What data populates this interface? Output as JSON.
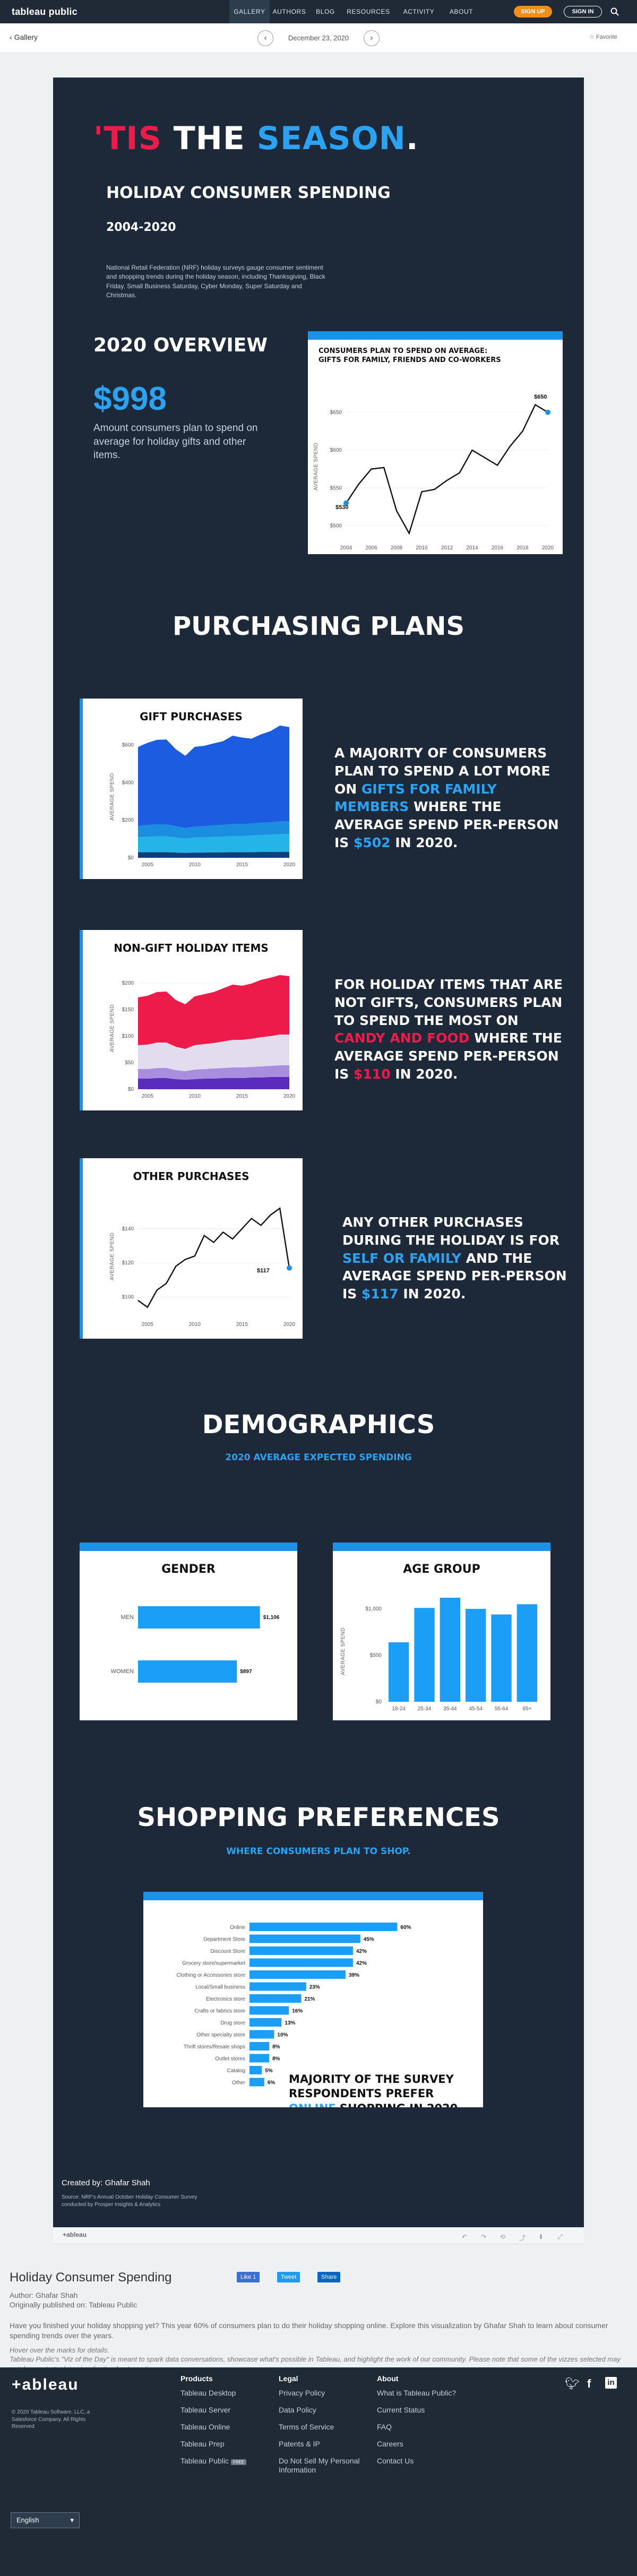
{
  "nav": {
    "logo": "tableau public",
    "items": [
      "GALLERY",
      "AUTHORS",
      "BLOG",
      "RESOURCES",
      "ACTIVITY",
      "ABOUT"
    ],
    "signup": "SIGN UP",
    "signin": "SIGN IN"
  },
  "subbar": {
    "back": "Gallery",
    "date": "December 23, 2020",
    "favorite": "Favorite"
  },
  "hero": {
    "tis": "'TIS",
    "the": " THE ",
    "season": "SEASON",
    "dot": ".",
    "subtitle": "HOLIDAY CONSUMER SPENDING",
    "years": "2004-2020",
    "intro": "National Retail Federation (NRF) holiday surveys gauge consumer sentiment and shopping trends during the holiday season, including Thanksgiving, Black Friday, Small Business Saturday, Cyber Monday, Super Saturday and Christmas."
  },
  "overview": {
    "heading": "2020 OVERVIEW",
    "amount": "$998",
    "desc": "Amount consumers plan to spend on average for holiday gifts and other items.",
    "chart_title_1": "CONSUMERS PLAN TO SPEND ON AVERAGE:",
    "chart_title_2": "GIFTS FOR FAMILY, FRIENDS AND CO-WORKERS",
    "ylabel": "AVERAGE SPEND",
    "end_label": "$650",
    "start_label": "$530"
  },
  "purchasing": {
    "heading": "PURCHASING PLANS",
    "gift": {
      "title": "GIFT PURCHASES",
      "ylabel": "AVERAGE SPEND",
      "text_a": "A MAJORITY OF CONSUMERS PLAN TO SPEND A LOT MORE ON ",
      "highlight": "GIFTS FOR FAMILY MEMBERS",
      "text_b": " WHERE THE AVERAGE SPEND PER-PERSON IS ",
      "amount": "$502",
      "text_c": " IN 2020."
    },
    "nongift": {
      "title": "NON-GIFT HOLIDAY ITEMS",
      "ylabel": "AVERAGE SPEND",
      "text_a": "FOR HOLIDAY ITEMS THAT ARE NOT GIFTS, CONSUMERS PLAN TO SPEND THE MOST ON ",
      "highlight": "CANDY AND FOOD",
      "text_b": " WHERE THE AVERAGE SPEND PER-PERSON IS ",
      "amount": "$110",
      "text_c": " IN 2020."
    },
    "other": {
      "title": "OTHER PURCHASES",
      "ylabel": "AVERAGE SPEND",
      "end_label": "$117",
      "text_a": "ANY OTHER PURCHASES DURING THE HOLIDAY IS FOR ",
      "highlight": "SELF OR FAMILY",
      "text_b": " AND THE AVERAGE SPEND PER-PERSON IS ",
      "amount": "$117",
      "text_c": " IN 2020."
    }
  },
  "demographics": {
    "heading": "DEMOGRAPHICS",
    "sub": "2020 AVERAGE EXPECTED SPENDING",
    "gender_title": "GENDER",
    "age_title": "AGE GROUP",
    "age_ylabel": "AVERAGE SPEND"
  },
  "shopping": {
    "heading": "SHOPPING PREFERENCES",
    "sub": "WHERE CONSUMERS PLAN TO SHOP.",
    "callout_a": "MAJORITY OF THE SURVEY RESPONDENTS PREFER ",
    "callout_hl": "ONLINE",
    "callout_b": " SHOPPING IN 2020."
  },
  "credits": {
    "creator": "Created by: Ghafar Shah",
    "source": "Source: NRF's Annual October Holiday Consumer Survey conducted by Prosper Insights & Analytics"
  },
  "toolbar": {
    "brand": "+ableau"
  },
  "details": {
    "title": "Holiday Consumer Spending",
    "like": "Like 1",
    "tweet": "Tweet",
    "share": "Share",
    "author": "Author: Ghafar Shah",
    "published": "Originally published on: Tableau Public",
    "description": "Have you finished your holiday shopping yet? This year 60% of consumers plan to do their holiday shopping online. Explore this visualization by Ghafar Shah to learn about consumer spending trends over the years.",
    "hover": "Hover over the marks for details.",
    "votd": "Tableau Public's \"Viz of the Day\" is meant to spark data conversations, showcase what's possible in Tableau, and highlight the work of our community. Please note that some of the vizzes selected may not demonstrate data visualization best practices."
  },
  "footer": {
    "logo": "+ableau",
    "copyright": "© 2020 Tableau Software, LLC, a Salesforce Company. All Rights Reserved",
    "products": {
      "head": "Products",
      "links": [
        "Tableau Desktop",
        "Tableau Server",
        "Tableau Online",
        "Tableau Prep",
        "Tableau Public"
      ],
      "free": "FREE"
    },
    "legal": {
      "head": "Legal",
      "links": [
        "Privacy Policy",
        "Data Policy",
        "Terms of Service",
        "Patents & IP",
        "Do Not Sell My Personal Information"
      ]
    },
    "about": {
      "head": "About",
      "links": [
        "What is Tableau Public?",
        "Current Status",
        "FAQ",
        "Careers",
        "Contact Us"
      ]
    },
    "language": "English"
  },
  "colors": {
    "navy": "#1d2838",
    "accent_blue": "#29a3f2",
    "accent_red": "#ec1b4a"
  },
  "chart_data": [
    {
      "type": "line",
      "title": "CONSUMERS PLAN TO SPEND ON AVERAGE: GIFTS FOR FAMILY, FRIENDS AND CO-WORKERS",
      "ylabel": "AVERAGE SPEND",
      "x": [
        2004,
        2005,
        2006,
        2007,
        2008,
        2009,
        2010,
        2011,
        2012,
        2013,
        2014,
        2015,
        2016,
        2017,
        2018,
        2019,
        2020
      ],
      "values": [
        530,
        555,
        575,
        577,
        520,
        490,
        545,
        548,
        560,
        570,
        600,
        590,
        580,
        605,
        625,
        660,
        650
      ],
      "ylim": [
        480,
        680
      ],
      "yticks": [
        500,
        550,
        600,
        650
      ],
      "xticks": [
        2004,
        2006,
        2008,
        2010,
        2012,
        2014,
        2016,
        2018,
        2020
      ]
    },
    {
      "type": "area",
      "title": "GIFT PURCHASES",
      "ylabel": "AVERAGE SPEND",
      "x": [
        2004,
        2005,
        2006,
        2007,
        2008,
        2009,
        2010,
        2011,
        2012,
        2013,
        2014,
        2015,
        2016,
        2017,
        2018,
        2019,
        2020
      ],
      "series": [
        {
          "values": [
            30,
            30,
            30,
            30,
            28,
            26,
            28,
            28,
            29,
            29,
            30,
            30,
            30,
            31,
            31,
            32,
            32
          ]
        },
        {
          "values": [
            80,
            82,
            84,
            84,
            80,
            76,
            80,
            80,
            82,
            84,
            86,
            86,
            88,
            90,
            92,
            94,
            94
          ]
        },
        {
          "values": [
            60,
            62,
            64,
            64,
            60,
            56,
            58,
            60,
            62,
            62,
            64,
            64,
            64,
            66,
            66,
            68,
            68
          ]
        },
        {
          "values": [
            420,
            438,
            450,
            452,
            410,
            385,
            425,
            428,
            436,
            446,
            470,
            460,
            452,
            470,
            485,
            510,
            502
          ]
        }
      ],
      "colors": [
        "#0d3f7a",
        "#24b4e8",
        "#1c8ee0",
        "#1b5ce0"
      ],
      "ylim": [
        0,
        650
      ],
      "yticks": [
        0,
        200,
        400,
        600
      ],
      "xticks": [
        2005,
        2010,
        2015,
        2020
      ]
    },
    {
      "type": "area",
      "title": "NON-GIFT HOLIDAY ITEMS",
      "ylabel": "AVERAGE SPEND",
      "x": [
        2004,
        2005,
        2006,
        2007,
        2008,
        2009,
        2010,
        2011,
        2012,
        2013,
        2014,
        2015,
        2016,
        2017,
        2018,
        2019,
        2020
      ],
      "series": [
        {
          "values": [
            20,
            20,
            21,
            21,
            19,
            18,
            19,
            20,
            20,
            21,
            21,
            21,
            22,
            22,
            23,
            23,
            23
          ]
        },
        {
          "values": [
            18,
            18,
            19,
            19,
            17,
            16,
            18,
            18,
            19,
            19,
            20,
            20,
            20,
            21,
            21,
            22,
            22
          ]
        },
        {
          "values": [
            45,
            46,
            48,
            48,
            44,
            42,
            46,
            47,
            48,
            50,
            52,
            52,
            53,
            55,
            56,
            58,
            58
          ]
        },
        {
          "values": [
            90,
            92,
            95,
            96,
            88,
            84,
            92,
            94,
            96,
            100,
            104,
            102,
            104,
            108,
            110,
            112,
            110
          ]
        }
      ],
      "colors": [
        "#5b2bbd",
        "#a98ee0",
        "#e2dcee",
        "#ec1b4a"
      ],
      "ylim": [
        0,
        230
      ],
      "yticks": [
        0,
        50,
        100,
        150,
        200
      ],
      "xticks": [
        2005,
        2010,
        2015,
        2020
      ]
    },
    {
      "type": "line",
      "title": "OTHER PURCHASES",
      "ylabel": "AVERAGE SPEND",
      "x": [
        2004,
        2005,
        2006,
        2007,
        2008,
        2009,
        2010,
        2011,
        2012,
        2013,
        2014,
        2015,
        2016,
        2017,
        2018,
        2019,
        2020
      ],
      "values": [
        98,
        94,
        104,
        108,
        118,
        122,
        124,
        136,
        132,
        138,
        134,
        140,
        146,
        142,
        148,
        152,
        117
      ],
      "ylim": [
        88,
        158
      ],
      "yticks": [
        100,
        120,
        140
      ],
      "xticks": [
        2005,
        2010,
        2015,
        2020
      ]
    },
    {
      "type": "bar",
      "title": "GENDER",
      "categories": [
        "MEN",
        "WOMEN"
      ],
      "values": [
        1106,
        897
      ],
      "labels": [
        "$1,106",
        "$897"
      ],
      "xlim": [
        0,
        1300
      ]
    },
    {
      "type": "bar",
      "title": "AGE GROUP",
      "ylabel": "AVERAGE SPEND",
      "categories": [
        "18-24",
        "25-34",
        "35-44",
        "45-54",
        "55-64",
        "65+"
      ],
      "values": [
        640,
        1010,
        1120,
        1000,
        940,
        1050
      ],
      "ylim": [
        0,
        1200
      ],
      "yticks": [
        0,
        500,
        1000
      ],
      "ytick_labels": [
        "$0",
        "$500",
        "$1,000"
      ]
    },
    {
      "type": "bar",
      "title": "WHERE CONSUMERS PLAN TO SHOP.",
      "categories": [
        "Online",
        "Department Store",
        "Discount Store",
        "Grocery store/supermarket",
        "Clothing or Accessories store",
        "Local/Small business",
        "Electronics store",
        "Crafts or fabrics store",
        "Drug store",
        "Other specialty store",
        "Thrift stores/Resale shops",
        "Outlet stores",
        "Catalog",
        "Other"
      ],
      "values": [
        60,
        45,
        42,
        42,
        39,
        23,
        21,
        16,
        13,
        10,
        8,
        8,
        5,
        6
      ],
      "labels": [
        "60%",
        "45%",
        "42%",
        "42%",
        "39%",
        "23%",
        "21%",
        "16%",
        "13%",
        "10%",
        "8%",
        "8%",
        "5%",
        "6%"
      ],
      "xlim": [
        0,
        100
      ]
    }
  ]
}
